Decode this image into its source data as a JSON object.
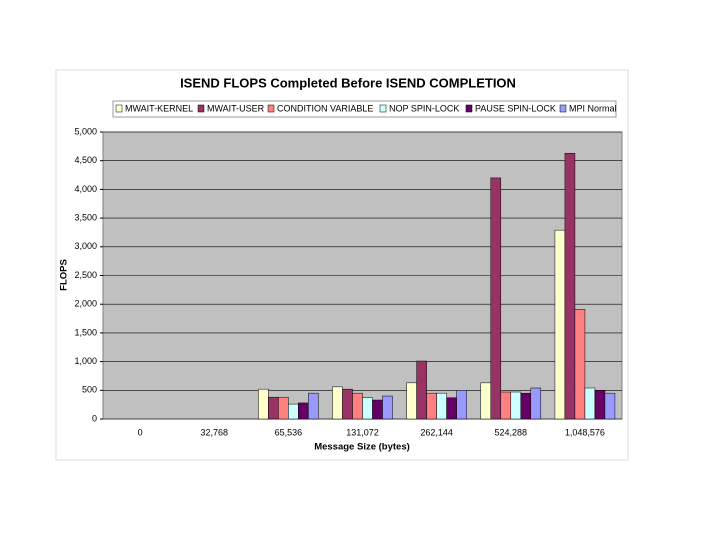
{
  "chart_data": {
    "type": "bar",
    "title": "ISEND FLOPS Completed Before ISEND COMPLETION",
    "x_label": "Message Size (bytes)",
    "y_label": "FLOPS",
    "categories": [
      "0",
      "32,768",
      "65,536",
      "131,072",
      "262,144",
      "524,288",
      "1,048,576"
    ],
    "series": [
      {
        "name": "MWAIT-KERNEL",
        "color": "#ffffcc",
        "values": [
          0,
          0,
          520,
          560,
          630,
          630,
          3290
        ]
      },
      {
        "name": "MWAIT-USER",
        "color": "#993366",
        "values": [
          0,
          0,
          380,
          520,
          1010,
          4200,
          4630
        ]
      },
      {
        "name": "CONDITION VARIABLE",
        "color": "#ff8080",
        "values": [
          0,
          0,
          380,
          450,
          450,
          470,
          1910
        ]
      },
      {
        "name": "NOP SPIN-LOCK",
        "color": "#ccffff",
        "values": [
          0,
          0,
          260,
          370,
          450,
          470,
          540
        ]
      },
      {
        "name": "PAUSE SPIN-LOCK",
        "color": "#660066",
        "values": [
          0,
          0,
          280,
          330,
          370,
          450,
          500
        ]
      },
      {
        "name": "MPI Normal",
        "color": "#9999ff",
        "values": [
          0,
          0,
          450,
          400,
          500,
          540,
          450
        ]
      }
    ],
    "ylim": [
      0,
      5000
    ],
    "yticks": [
      0,
      500,
      {
        "value": 1000,
        "label": "1,000"
      },
      {
        "value": 1500,
        "label": "1,500"
      },
      {
        "value": 2000,
        "label": "2,000"
      },
      {
        "value": 2500,
        "label": "2,500"
      },
      {
        "value": 3000,
        "label": "3,000"
      },
      {
        "value": 3500,
        "label": "3,500"
      },
      {
        "value": 4000,
        "label": "4,000"
      },
      {
        "value": 4500,
        "label": "4,500"
      },
      {
        "value": 5000,
        "label": "5,000"
      }
    ],
    "grid": true,
    "legend": "top"
  }
}
